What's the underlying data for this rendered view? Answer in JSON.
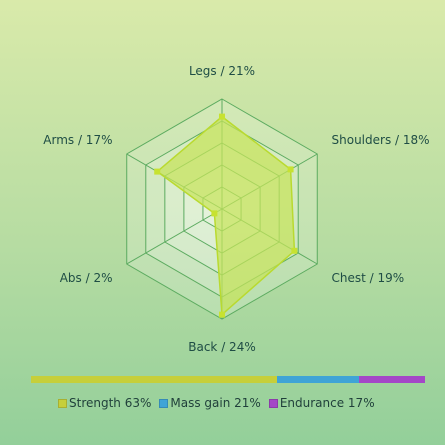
{
  "chart_data": {
    "type": "radar",
    "title": "",
    "rmax": 25,
    "rings": 5,
    "grid": true,
    "axes": [
      {
        "name": "Legs",
        "value": 21,
        "label": "Legs / 21%"
      },
      {
        "name": "Shoulders",
        "value": 18,
        "label": "Shoulders / 18%"
      },
      {
        "name": "Chest",
        "value": 19,
        "label": "Chest / 19%"
      },
      {
        "name": "Back",
        "value": 24,
        "label": "Back / 24%"
      },
      {
        "name": "Abs",
        "value": 2,
        "label": "Abs / 2%"
      },
      {
        "name": "Arms",
        "value": 17,
        "label": "Arms / 17%"
      }
    ],
    "colors": {
      "fill": "#c6e35a",
      "stroke": "#b9da2f",
      "grid": "#5cab60",
      "point": "#c7e231"
    },
    "summary_bar": {
      "legend_placement": "bottom",
      "segments": [
        {
          "label": "Strength 63%",
          "value": 63,
          "color": "#c6cf3a"
        },
        {
          "label": "Mass gain 21%",
          "value": 21,
          "color": "#3fa4d6"
        },
        {
          "label": "Endurance 17%",
          "value": 17,
          "color": "#a447c7"
        }
      ]
    }
  }
}
